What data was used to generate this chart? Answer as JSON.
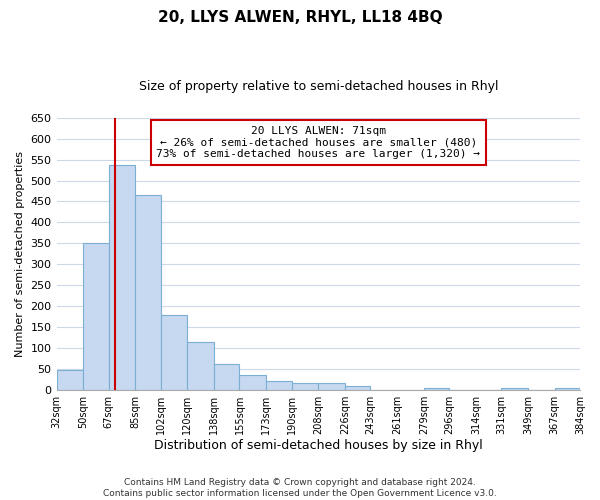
{
  "title": "20, LLYS ALWEN, RHYL, LL18 4BQ",
  "subtitle": "Size of property relative to semi-detached houses in Rhyl",
  "xlabel": "Distribution of semi-detached houses by size in Rhyl",
  "ylabel": "Number of semi-detached properties",
  "bin_labels": [
    "32sqm",
    "50sqm",
    "67sqm",
    "85sqm",
    "102sqm",
    "120sqm",
    "138sqm",
    "155sqm",
    "173sqm",
    "190sqm",
    "208sqm",
    "226sqm",
    "243sqm",
    "261sqm",
    "279sqm",
    "296sqm",
    "314sqm",
    "331sqm",
    "349sqm",
    "367sqm",
    "384sqm"
  ],
  "bar_values": [
    47,
    350,
    537,
    465,
    178,
    115,
    62,
    35,
    22,
    15,
    15,
    9,
    0,
    0,
    4,
    0,
    0,
    3,
    0,
    4
  ],
  "bar_edges": [
    32,
    50,
    67,
    85,
    102,
    120,
    138,
    155,
    173,
    190,
    208,
    226,
    243,
    261,
    279,
    296,
    314,
    331,
    349,
    367,
    384
  ],
  "bar_color": "#c6d9f0",
  "bar_edgecolor": "#7bafd4",
  "property_line_x": 71,
  "property_line_color": "#cc0000",
  "annotation_title": "20 LLYS ALWEN: 71sqm",
  "annotation_line1": "← 26% of semi-detached houses are smaller (480)",
  "annotation_line2": "73% of semi-detached houses are larger (1,320) →",
  "annotation_box_color": "#ffffff",
  "annotation_box_edgecolor": "#cc0000",
  "ylim": [
    0,
    650
  ],
  "yticks": [
    0,
    50,
    100,
    150,
    200,
    250,
    300,
    350,
    400,
    450,
    500,
    550,
    600,
    650
  ],
  "footer_line1": "Contains HM Land Registry data © Crown copyright and database right 2024.",
  "footer_line2": "Contains public sector information licensed under the Open Government Licence v3.0.",
  "background_color": "#ffffff",
  "grid_color": "#ccd9e8",
  "title_fontsize": 11,
  "subtitle_fontsize": 9,
  "ylabel_fontsize": 8,
  "xlabel_fontsize": 9,
  "ytick_fontsize": 8,
  "xtick_fontsize": 7,
  "annotation_fontsize": 8,
  "footer_fontsize": 6.5
}
